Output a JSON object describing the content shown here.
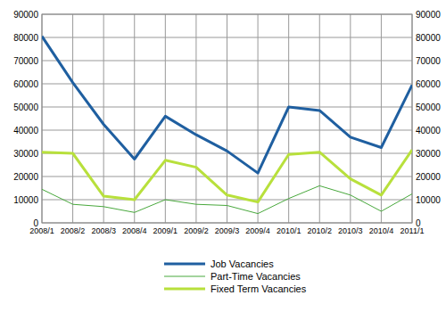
{
  "chart_data": {
    "type": "line",
    "categories": [
      "2008/1",
      "2008/2",
      "2008/3",
      "2008/4",
      "2009/1",
      "2009/2",
      "2009/3",
      "2009/4",
      "2010/1",
      "2010/2",
      "2010/3",
      "2010/4",
      "2011/1"
    ],
    "series": [
      {
        "name": "Job Vacancies",
        "color": "#1f5fa0",
        "values": [
          80500,
          60500,
          42500,
          27500,
          46000,
          38000,
          31000,
          21500,
          50000,
          48500,
          37000,
          32500,
          59500
        ]
      },
      {
        "name": "Part-Time Vacancies",
        "color": "#48a83c",
        "values": [
          14500,
          8000,
          7000,
          4500,
          10000,
          8000,
          7500,
          4000,
          10500,
          16000,
          12000,
          5000,
          12500
        ]
      },
      {
        "name": "Fixed Term Vacancies",
        "color": "#b8e03c",
        "values": [
          30500,
          30000,
          11500,
          10000,
          27000,
          24000,
          12000,
          9000,
          29500,
          30500,
          19000,
          12000,
          31500
        ]
      }
    ],
    "ylim": [
      0,
      90000
    ],
    "yticks": [
      0,
      10000,
      20000,
      30000,
      40000,
      50000,
      60000,
      70000,
      80000,
      90000
    ],
    "y2lim": [
      0,
      90000
    ],
    "y2ticks": [
      0,
      10000,
      20000,
      30000,
      40000,
      50000,
      60000,
      70000,
      80000,
      90000
    ],
    "grid": true,
    "legend": "bottom"
  }
}
